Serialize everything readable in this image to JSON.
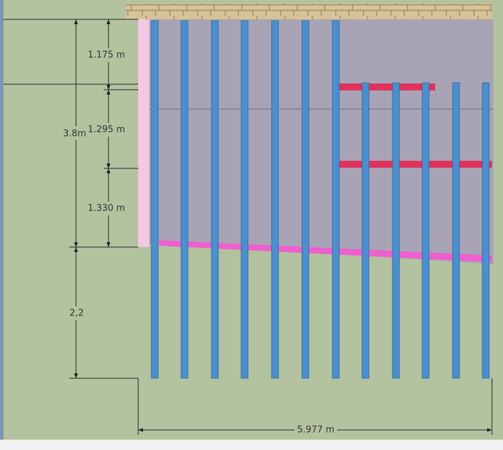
{
  "dimensions": {
    "segments": [
      "1.175 m",
      "1.295 m",
      "1.330 m"
    ],
    "upper_total": "3.8m",
    "lower": "2,2",
    "width": "5.977 m"
  }
}
